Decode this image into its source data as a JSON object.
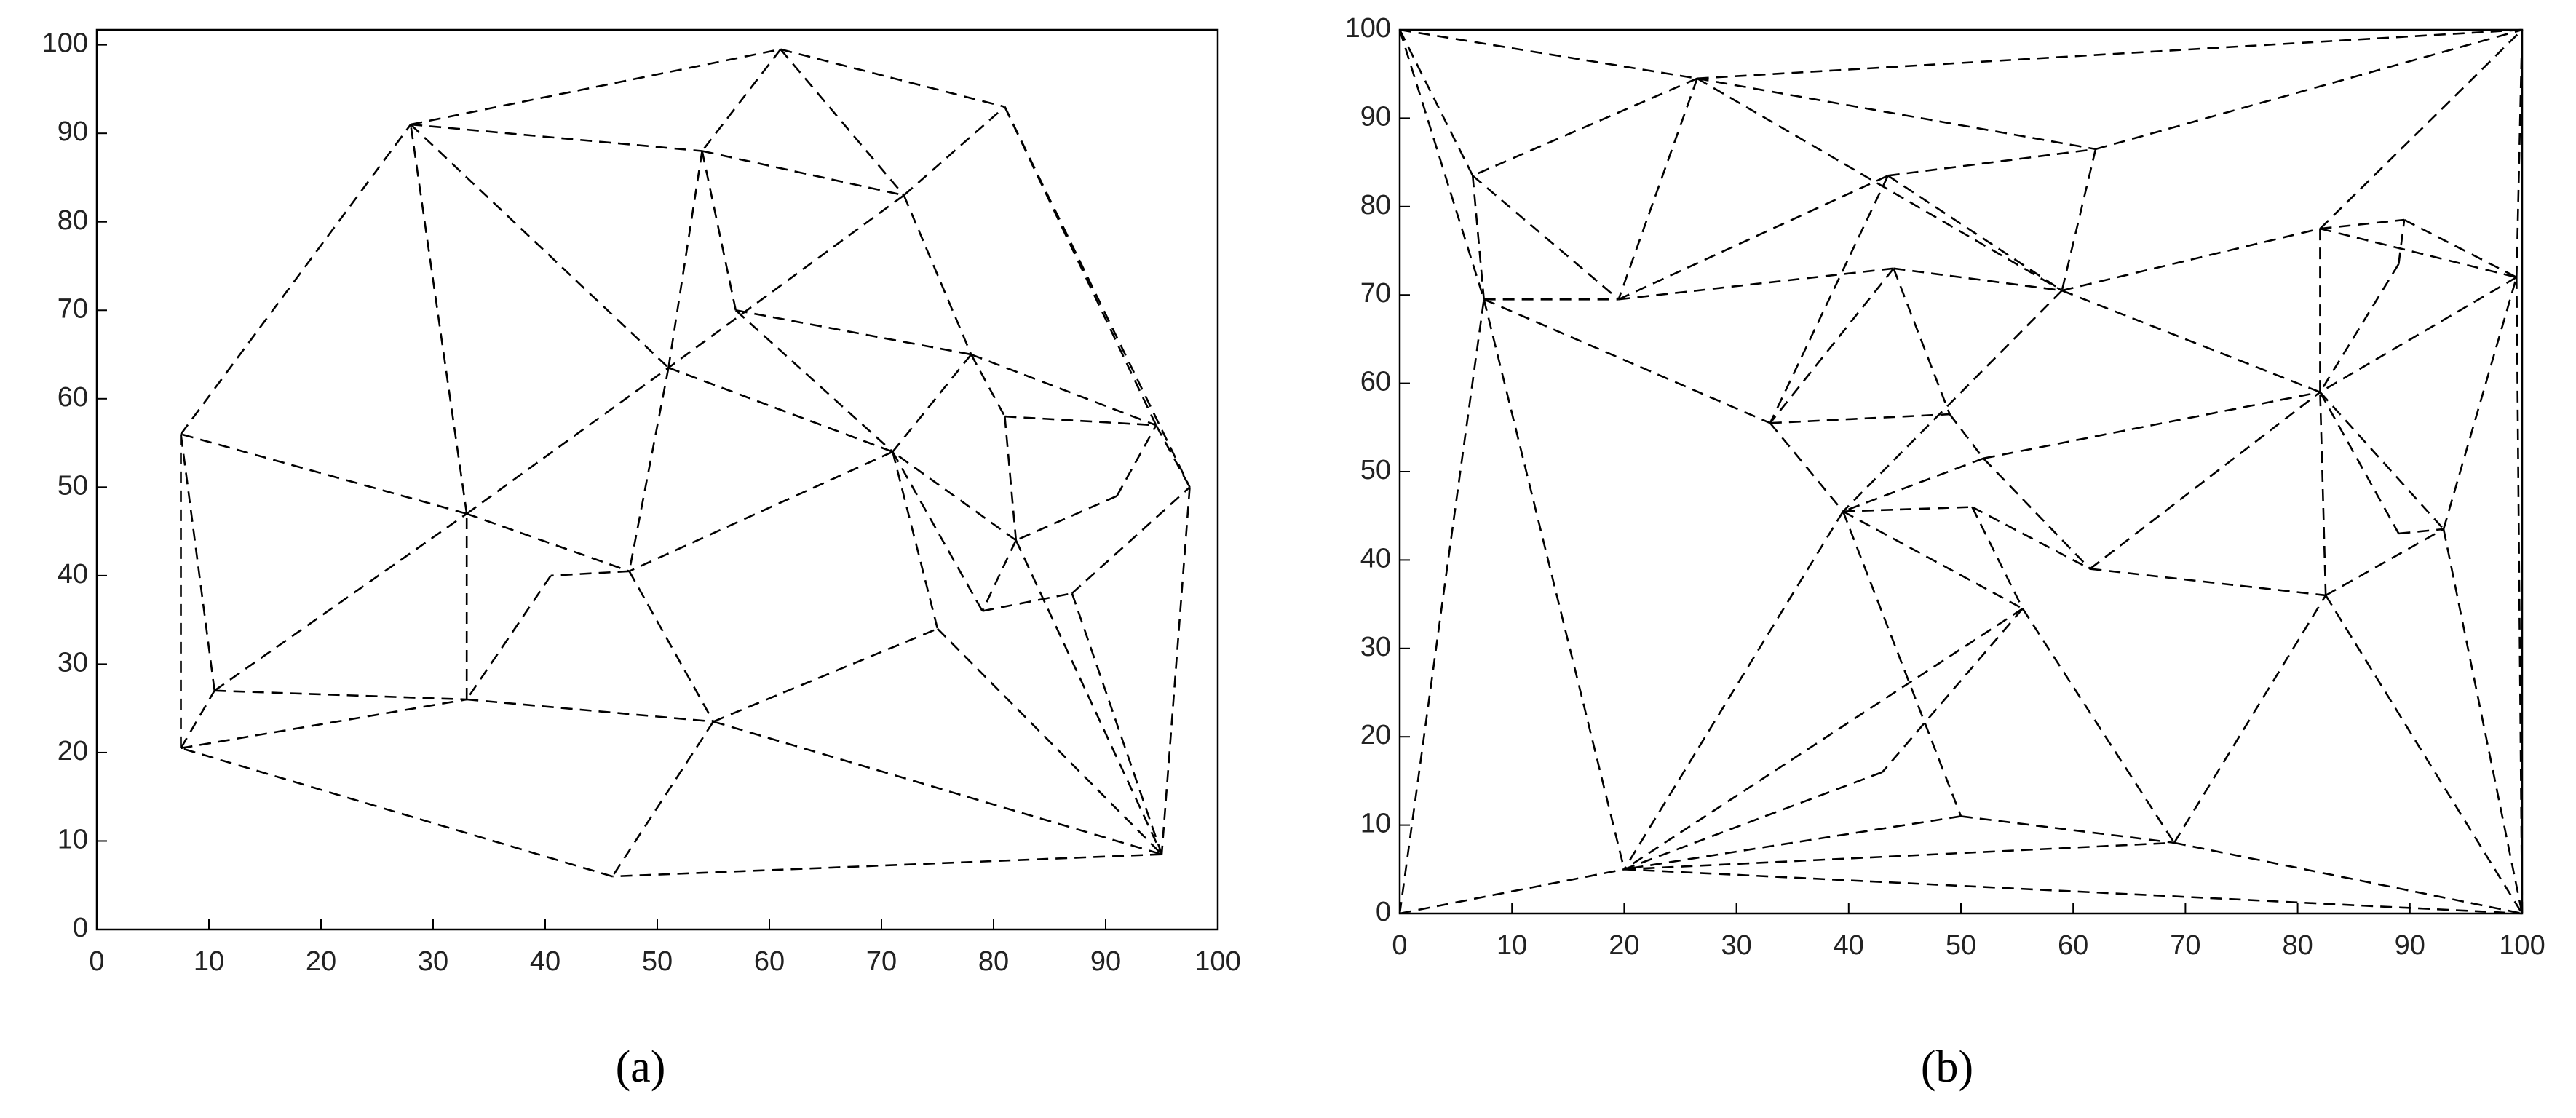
{
  "chart_data": [
    {
      "type": "segments",
      "label": "(a)",
      "color": "#000000",
      "xlim": [
        0,
        100
      ],
      "ylim": [
        0,
        101.7
      ],
      "xticks": [
        0,
        10,
        20,
        30,
        40,
        50,
        60,
        70,
        80,
        90,
        100
      ],
      "yticks": [
        0,
        10,
        20,
        30,
        40,
        50,
        60,
        70,
        80,
        90,
        100
      ],
      "segments": [
        {
          "x": [
            7.5,
            7.5
          ],
          "y": [
            20.5,
            56
          ]
        },
        {
          "x": [
            7.5,
            28
          ],
          "y": [
            56,
            91
          ]
        },
        {
          "x": [
            28,
            61
          ],
          "y": [
            91,
            99.5
          ]
        },
        {
          "x": [
            61,
            81
          ],
          "y": [
            99.5,
            93
          ]
        },
        {
          "x": [
            81,
            94.5
          ],
          "y": [
            93,
            57
          ]
        },
        {
          "x": [
            81,
            97.5
          ],
          "y": [
            93,
            50
          ]
        },
        {
          "x": [
            94.5,
            97.5
          ],
          "y": [
            57,
            50
          ]
        },
        {
          "x": [
            97.5,
            95
          ],
          "y": [
            50,
            8.5
          ]
        },
        {
          "x": [
            95,
            46
          ],
          "y": [
            8.5,
            6
          ]
        },
        {
          "x": [
            46,
            7.5
          ],
          "y": [
            6,
            20.5
          ]
        },
        {
          "x": [
            7.5,
            10.5
          ],
          "y": [
            20.5,
            27
          ]
        },
        {
          "x": [
            10.5,
            7.5
          ],
          "y": [
            27,
            56
          ]
        },
        {
          "x": [
            7.5,
            33
          ],
          "y": [
            20.5,
            26
          ]
        },
        {
          "x": [
            10.5,
            33
          ],
          "y": [
            27,
            26
          ]
        },
        {
          "x": [
            33,
            33
          ],
          "y": [
            26,
            47
          ]
        },
        {
          "x": [
            33,
            28
          ],
          "y": [
            47,
            91
          ]
        },
        {
          "x": [
            28,
            51
          ],
          "y": [
            91,
            63.5
          ]
        },
        {
          "x": [
            28,
            54
          ],
          "y": [
            91,
            88
          ]
        },
        {
          "x": [
            54,
            72
          ],
          "y": [
            88,
            83
          ]
        },
        {
          "x": [
            61,
            54
          ],
          "y": [
            99.5,
            88
          ]
        },
        {
          "x": [
            61,
            72
          ],
          "y": [
            99.5,
            83
          ]
        },
        {
          "x": [
            72,
            51
          ],
          "y": [
            83,
            63.5
          ]
        },
        {
          "x": [
            54,
            51
          ],
          "y": [
            88,
            63.5
          ]
        },
        {
          "x": [
            54,
            57
          ],
          "y": [
            88,
            70
          ]
        },
        {
          "x": [
            72,
            78
          ],
          "y": [
            83,
            65
          ]
        },
        {
          "x": [
            72,
            81
          ],
          "y": [
            83,
            93
          ]
        },
        {
          "x": [
            33,
            51
          ],
          "y": [
            47,
            63.5
          ]
        },
        {
          "x": [
            33,
            7.5
          ],
          "y": [
            47,
            56
          ]
        },
        {
          "x": [
            33,
            47.5
          ],
          "y": [
            47,
            40.5
          ]
        },
        {
          "x": [
            51,
            47.5
          ],
          "y": [
            63.5,
            40.5
          ]
        },
        {
          "x": [
            51,
            71
          ],
          "y": [
            63.5,
            54
          ]
        },
        {
          "x": [
            57,
            71
          ],
          "y": [
            70,
            54
          ]
        },
        {
          "x": [
            57,
            78
          ],
          "y": [
            70,
            65
          ]
        },
        {
          "x": [
            78,
            71
          ],
          "y": [
            65,
            54
          ]
        },
        {
          "x": [
            78,
            81
          ],
          "y": [
            65,
            58
          ]
        },
        {
          "x": [
            78,
            94.5
          ],
          "y": [
            65,
            57
          ]
        },
        {
          "x": [
            81,
            94.5
          ],
          "y": [
            58,
            57
          ]
        },
        {
          "x": [
            81,
            82
          ],
          "y": [
            58,
            44
          ]
        },
        {
          "x": [
            91,
            94.5
          ],
          "y": [
            49,
            57
          ]
        },
        {
          "x": [
            91,
            82
          ],
          "y": [
            49,
            44
          ]
        },
        {
          "x": [
            82,
            71
          ],
          "y": [
            44,
            54
          ]
        },
        {
          "x": [
            82,
            79
          ],
          "y": [
            44,
            36
          ]
        },
        {
          "x": [
            71,
            79
          ],
          "y": [
            54,
            36
          ]
        },
        {
          "x": [
            71,
            75
          ],
          "y": [
            54,
            34
          ]
        },
        {
          "x": [
            71,
            47.5
          ],
          "y": [
            54,
            40.5
          ]
        },
        {
          "x": [
            47.5,
            40.5
          ],
          "y": [
            40.5,
            40
          ]
        },
        {
          "x": [
            40.5,
            33
          ],
          "y": [
            40,
            26
          ]
        },
        {
          "x": [
            47.5,
            55
          ],
          "y": [
            40.5,
            23.5
          ]
        },
        {
          "x": [
            33,
            55
          ],
          "y": [
            26,
            23.5
          ]
        },
        {
          "x": [
            55,
            46
          ],
          "y": [
            23.5,
            6
          ]
        },
        {
          "x": [
            55,
            75
          ],
          "y": [
            23.5,
            34
          ]
        },
        {
          "x": [
            55,
            95
          ],
          "y": [
            23.5,
            8.5
          ]
        },
        {
          "x": [
            75,
            95
          ],
          "y": [
            34,
            8.5
          ]
        },
        {
          "x": [
            79,
            87
          ],
          "y": [
            36,
            38
          ]
        },
        {
          "x": [
            87,
            97.5
          ],
          "y": [
            38,
            50
          ]
        },
        {
          "x": [
            87,
            95
          ],
          "y": [
            38,
            8.5
          ]
        },
        {
          "x": [
            82,
            95
          ],
          "y": [
            44,
            8.5
          ]
        },
        {
          "x": [
            10.5,
            33
          ],
          "y": [
            27,
            47
          ]
        }
      ]
    },
    {
      "type": "segments",
      "label": "(b)",
      "color": "#000000",
      "xlim": [
        0,
        100
      ],
      "ylim": [
        0,
        100
      ],
      "xticks": [
        0,
        10,
        20,
        30,
        40,
        50,
        60,
        70,
        80,
        90,
        100
      ],
      "yticks": [
        0,
        10,
        20,
        30,
        40,
        50,
        60,
        70,
        80,
        90,
        100
      ],
      "segments": [
        {
          "x": [
            0,
            6.5
          ],
          "y": [
            100,
            83.5
          ]
        },
        {
          "x": [
            0,
            7.5
          ],
          "y": [
            100,
            69.5
          ]
        },
        {
          "x": [
            0,
            26.5
          ],
          "y": [
            100,
            94.5
          ]
        },
        {
          "x": [
            26.5,
            100
          ],
          "y": [
            94.5,
            100
          ]
        },
        {
          "x": [
            26.5,
            6.5
          ],
          "y": [
            94.5,
            83.5
          ]
        },
        {
          "x": [
            26.5,
            19.5
          ],
          "y": [
            94.5,
            69.5
          ]
        },
        {
          "x": [
            26.5,
            62
          ],
          "y": [
            94.5,
            86.5
          ]
        },
        {
          "x": [
            26.5,
            59
          ],
          "y": [
            94.5,
            70.5
          ]
        },
        {
          "x": [
            6.5,
            7.5
          ],
          "y": [
            83.5,
            69.5
          ]
        },
        {
          "x": [
            7.5,
            19.5
          ],
          "y": [
            69.5,
            69.5
          ]
        },
        {
          "x": [
            7.5,
            33
          ],
          "y": [
            69.5,
            55.5
          ]
        },
        {
          "x": [
            7.5,
            20
          ],
          "y": [
            69.5,
            5
          ]
        },
        {
          "x": [
            0,
            7.5
          ],
          "y": [
            0,
            69.5
          ]
        },
        {
          "x": [
            0,
            20
          ],
          "y": [
            0,
            5
          ]
        },
        {
          "x": [
            19.5,
            43.5
          ],
          "y": [
            69.5,
            83.5
          ]
        },
        {
          "x": [
            19.5,
            44
          ],
          "y": [
            69.5,
            73
          ]
        },
        {
          "x": [
            6.5,
            19.5
          ],
          "y": [
            83.5,
            69.5
          ]
        },
        {
          "x": [
            43.5,
            62
          ],
          "y": [
            83.5,
            86.5
          ]
        },
        {
          "x": [
            43.5,
            59
          ],
          "y": [
            83.5,
            70.5
          ]
        },
        {
          "x": [
            43.5,
            33
          ],
          "y": [
            83.5,
            55.5
          ]
        },
        {
          "x": [
            62,
            59
          ],
          "y": [
            86.5,
            70.5
          ]
        },
        {
          "x": [
            62,
            100
          ],
          "y": [
            86.5,
            100
          ]
        },
        {
          "x": [
            82,
            100
          ],
          "y": [
            77.5,
            100
          ]
        },
        {
          "x": [
            82,
            89.5
          ],
          "y": [
            77.5,
            78.5
          ]
        },
        {
          "x": [
            82,
            99.5
          ],
          "y": [
            77.5,
            72
          ]
        },
        {
          "x": [
            82,
            82
          ],
          "y": [
            77.5,
            59
          ]
        },
        {
          "x": [
            89.5,
            99.5
          ],
          "y": [
            78.5,
            72
          ]
        },
        {
          "x": [
            89,
            89.5
          ],
          "y": [
            73.5,
            78.5
          ]
        },
        {
          "x": [
            89,
            82
          ],
          "y": [
            73.5,
            59
          ]
        },
        {
          "x": [
            99.5,
            100
          ],
          "y": [
            72,
            100
          ]
        },
        {
          "x": [
            99.5,
            100
          ],
          "y": [
            72,
            0
          ]
        },
        {
          "x": [
            99.5,
            82
          ],
          "y": [
            72,
            59
          ]
        },
        {
          "x": [
            59,
            82
          ],
          "y": [
            70.5,
            59
          ]
        },
        {
          "x": [
            59,
            82
          ],
          "y": [
            70.5,
            77.5
          ]
        },
        {
          "x": [
            59,
            39.5
          ],
          "y": [
            70.5,
            45.5
          ]
        },
        {
          "x": [
            44,
            59
          ],
          "y": [
            73,
            70.5
          ]
        },
        {
          "x": [
            44,
            33
          ],
          "y": [
            73,
            55.5
          ]
        },
        {
          "x": [
            44,
            49
          ],
          "y": [
            73,
            56.5
          ]
        },
        {
          "x": [
            33,
            49
          ],
          "y": [
            55.5,
            56.5
          ]
        },
        {
          "x": [
            33,
            39.5
          ],
          "y": [
            55.5,
            45.5
          ]
        },
        {
          "x": [
            39.5,
            20
          ],
          "y": [
            45.5,
            5
          ]
        },
        {
          "x": [
            49,
            52
          ],
          "y": [
            56.5,
            51.5
          ]
        },
        {
          "x": [
            52,
            82
          ],
          "y": [
            51.5,
            59
          ]
        },
        {
          "x": [
            52,
            61.5
          ],
          "y": [
            51.5,
            39
          ]
        },
        {
          "x": [
            52,
            39.5
          ],
          "y": [
            51.5,
            45.5
          ]
        },
        {
          "x": [
            39.5,
            51
          ],
          "y": [
            45.5,
            46
          ]
        },
        {
          "x": [
            51,
            61.5
          ],
          "y": [
            46,
            39
          ]
        },
        {
          "x": [
            51,
            55.5
          ],
          "y": [
            46,
            34.5
          ]
        },
        {
          "x": [
            39.5,
            55.5
          ],
          "y": [
            45.5,
            34.5
          ]
        },
        {
          "x": [
            39.5,
            50
          ],
          "y": [
            45.5,
            11
          ]
        },
        {
          "x": [
            61.5,
            82
          ],
          "y": [
            39,
            59
          ]
        },
        {
          "x": [
            61.5,
            82.5
          ],
          "y": [
            39,
            36
          ]
        },
        {
          "x": [
            55.5,
            20
          ],
          "y": [
            34.5,
            5
          ]
        },
        {
          "x": [
            55.5,
            69
          ],
          "y": [
            34.5,
            8
          ]
        },
        {
          "x": [
            55.5,
            43
          ],
          "y": [
            34.5,
            16
          ]
        },
        {
          "x": [
            43,
            20
          ],
          "y": [
            16,
            5
          ]
        },
        {
          "x": [
            50,
            20
          ],
          "y": [
            11,
            5
          ]
        },
        {
          "x": [
            50,
            69
          ],
          "y": [
            11,
            8
          ]
        },
        {
          "x": [
            20,
            69
          ],
          "y": [
            5,
            8
          ]
        },
        {
          "x": [
            20,
            100
          ],
          "y": [
            5,
            0
          ]
        },
        {
          "x": [
            69,
            100
          ],
          "y": [
            8,
            0
          ]
        },
        {
          "x": [
            69,
            82.5
          ],
          "y": [
            8,
            36
          ]
        },
        {
          "x": [
            82.5,
            100
          ],
          "y": [
            36,
            0
          ]
        },
        {
          "x": [
            82.5,
            82
          ],
          "y": [
            36,
            59
          ]
        },
        {
          "x": [
            82.5,
            93
          ],
          "y": [
            36,
            43.5
          ]
        },
        {
          "x": [
            82,
            89
          ],
          "y": [
            59,
            43
          ]
        },
        {
          "x": [
            89,
            93
          ],
          "y": [
            43,
            43.5
          ]
        },
        {
          "x": [
            93,
            100
          ],
          "y": [
            43.5,
            0
          ]
        },
        {
          "x": [
            93,
            99.5
          ],
          "y": [
            43.5,
            72
          ]
        },
        {
          "x": [
            82,
            93
          ],
          "y": [
            59,
            43.5
          ]
        }
      ]
    }
  ]
}
